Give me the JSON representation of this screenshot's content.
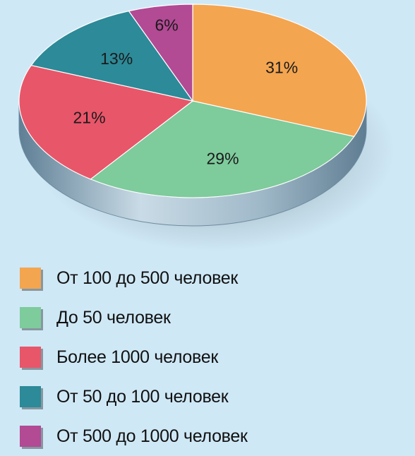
{
  "chart_data": {
    "type": "pie",
    "title": "",
    "slices": [
      {
        "label": "От 100 до 500 человек",
        "value": 31,
        "value_label": "31%",
        "color": "#f4a550"
      },
      {
        "label": "До 50 человек",
        "value": 29,
        "value_label": "29%",
        "color": "#7ecb9c"
      },
      {
        "label": "Более 1000 человек",
        "value": 21,
        "value_label": "21%",
        "color": "#e8566a"
      },
      {
        "label": "От 50 до 100 человек",
        "value": 13,
        "value_label": "13%",
        "color": "#2d8a98"
      },
      {
        "label": "От 500 до 1000 человек",
        "value": 6,
        "value_label": "6%",
        "color": "#b24a94"
      }
    ],
    "legend_position": "bottom-left",
    "style": "3d-pie"
  },
  "colors": {
    "background": "#cfe8f6",
    "pie_side": "#8aa8bc"
  }
}
